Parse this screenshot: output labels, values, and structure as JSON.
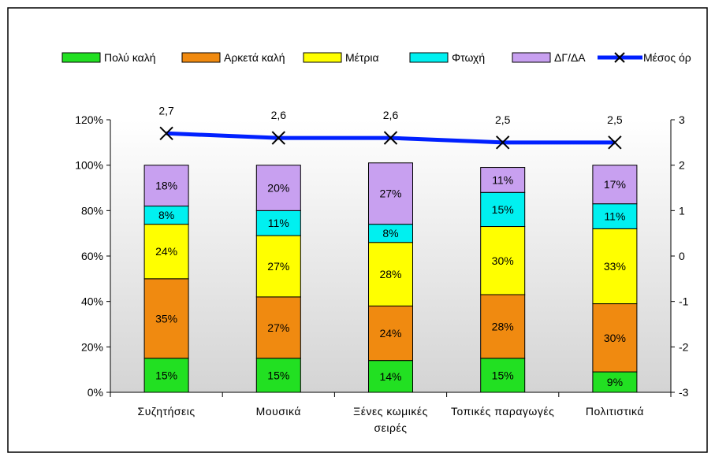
{
  "chart_data": {
    "type": "bar",
    "subtype": "stacked-percent-with-line",
    "categories": [
      "Συζητήσεις",
      "Μουσικά",
      "Ξένες κωμικές σειρές",
      "Τοπικές παραγωγές",
      "Πολιτιστικά"
    ],
    "category_lines": [
      [
        "Συζητήσεις"
      ],
      [
        "Μουσικά"
      ],
      [
        "Ξένες κωμικές",
        "σειρές"
      ],
      [
        "Τοπικές παραγωγές"
      ],
      [
        "Πολιτιστικά"
      ]
    ],
    "series": [
      {
        "name": "Πολύ καλή",
        "color": "#22e022",
        "values": [
          15,
          15,
          14,
          15,
          9
        ],
        "labels": [
          "15%",
          "15%",
          "14%",
          "15%",
          "9%"
        ]
      },
      {
        "name": "Αρκετά καλή",
        "color": "#f08a10",
        "values": [
          35,
          27,
          24,
          28,
          30
        ],
        "labels": [
          "35%",
          "27%",
          "24%",
          "28%",
          "30%"
        ]
      },
      {
        "name": "Μέτρια",
        "color": "#ffff00",
        "values": [
          24,
          27,
          28,
          30,
          33
        ],
        "labels": [
          "24%",
          "27%",
          "28%",
          "30%",
          "33%"
        ]
      },
      {
        "name": "Φτωχή",
        "color": "#00f0f0",
        "values": [
          8,
          11,
          8,
          15,
          11
        ],
        "labels": [
          "8%",
          "11%",
          "8%",
          "15%",
          "11%"
        ]
      },
      {
        "name": "ΔΓ/ΔΑ",
        "color": "#c8a0f0",
        "values": [
          18,
          20,
          27,
          11,
          17
        ],
        "labels": [
          "18%",
          "20%",
          "27%",
          "11%",
          "17%"
        ]
      }
    ],
    "line_series": {
      "name": "Μέσος όρ",
      "color": "#0020ff",
      "axis": "right",
      "values": [
        2.7,
        2.6,
        2.6,
        2.5,
        2.5
      ],
      "labels": [
        "2,7",
        "2,6",
        "2,6",
        "2,5",
        "2,5"
      ]
    },
    "ylim": [
      0,
      120
    ],
    "y_ticks": [
      "0%",
      "20%",
      "40%",
      "60%",
      "80%",
      "100%",
      "120%"
    ],
    "y2lim": [
      -3,
      3
    ],
    "y2_ticks": [
      "-3",
      "-2",
      "-1",
      "0",
      "1",
      "2",
      "3"
    ],
    "grid": false,
    "legend": "top",
    "title": "",
    "xlabel": "",
    "ylabel": ""
  }
}
